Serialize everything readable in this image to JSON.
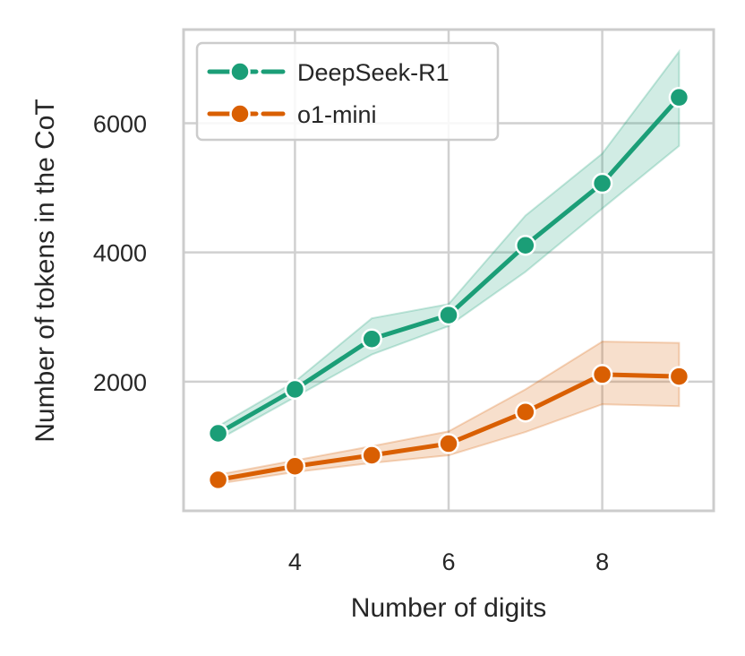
{
  "chart_data": {
    "type": "line",
    "title": "",
    "xlabel": "Number of digits",
    "ylabel": "Number of tokens in the CoT",
    "x": [
      3,
      4,
      5,
      6,
      7,
      8,
      9
    ],
    "xlim": [
      2.55,
      9.45
    ],
    "ylim": [
      0,
      7450
    ],
    "xticks": [
      4,
      6,
      8
    ],
    "yticks": [
      2000,
      4000,
      6000
    ],
    "grid": true,
    "legend_position": "top-left",
    "series": [
      {
        "name": "DeepSeek-R1",
        "color": "#1b9e77",
        "values": [
          1200,
          1880,
          2660,
          3030,
          4110,
          5070,
          6400
        ],
        "ci_lower": [
          1100,
          1760,
          2420,
          2860,
          3700,
          4680,
          5650
        ],
        "ci_upper": [
          1310,
          2000,
          2980,
          3200,
          4570,
          5530,
          7110
        ]
      },
      {
        "name": "o1-mini",
        "color": "#d95f02",
        "values": [
          480,
          690,
          860,
          1040,
          1530,
          2110,
          2080
        ],
        "ci_lower": [
          420,
          600,
          740,
          860,
          1220,
          1650,
          1620
        ],
        "ci_upper": [
          560,
          780,
          1000,
          1230,
          1880,
          2620,
          2600
        ]
      }
    ]
  }
}
